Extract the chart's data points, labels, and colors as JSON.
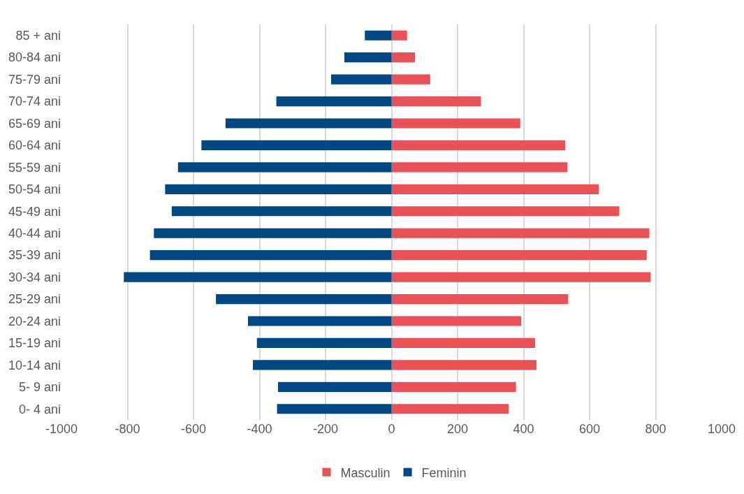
{
  "chart_data": {
    "type": "bar",
    "orientation": "horizontal",
    "categories": [
      "85 + ani",
      "80-84 ani",
      "75-79 ani",
      "70-74 ani",
      "65-69 ani",
      "60-64 ani",
      "55-59 ani",
      "50-54 ani",
      "45-49 ani",
      "40-44 ani",
      "35-39 ani",
      "30-34 ani",
      "25-29 ani",
      "20-24 ani",
      "15-19 ani",
      "10-14 ani",
      "5- 9 ani",
      "0- 4 ani"
    ],
    "series": [
      {
        "name": "Masculin",
        "color": "#e85156",
        "values": [
          47,
          71,
          117,
          271,
          390,
          526,
          533,
          628,
          690,
          781,
          773,
          785,
          535,
          393,
          435,
          439,
          377,
          355
        ]
      },
      {
        "name": "Feminin",
        "color": "#004884",
        "values": [
          -81,
          -143,
          -183,
          -349,
          -503,
          -576,
          -647,
          -686,
          -666,
          -720,
          -732,
          -811,
          -532,
          -435,
          -408,
          -420,
          -344,
          -347
        ]
      }
    ],
    "xlim": [
      -1000,
      1000
    ],
    "xticks": [
      -1000,
      -800,
      -600,
      -400,
      -200,
      0,
      200,
      400,
      600,
      800,
      1000
    ],
    "stacked": true,
    "grid": "x",
    "legend": "bottom"
  }
}
